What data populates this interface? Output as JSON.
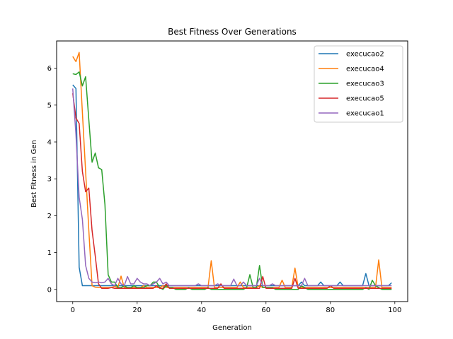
{
  "chart_data": {
    "type": "line",
    "title": "Best Fitness Over Generations",
    "xlabel": "Generation",
    "ylabel": "Best Fitness in Gen",
    "xlim": [
      -5,
      104
    ],
    "ylim": [
      -0.33,
      6.74
    ],
    "xticks": [
      0,
      20,
      40,
      60,
      80,
      100
    ],
    "yticks": [
      0,
      1,
      2,
      3,
      4,
      5,
      6
    ],
    "grid": false,
    "legend_position": "top-right",
    "series": [
      {
        "name": "execucao2",
        "color": "#1f77b4",
        "y": [
          5.55,
          5.45,
          0.6,
          0.1,
          0.1,
          0.1,
          0.1,
          0.1,
          0.1,
          0.1,
          0.1,
          0.1,
          0.1,
          0.1,
          0.1,
          0.1,
          0.1,
          0.1,
          0.1,
          0.1,
          0.1,
          0.1,
          0.1,
          0.1,
          0.1,
          0.1,
          0.1,
          0.1,
          0.1,
          0.1,
          0.1,
          0.1,
          0.1,
          0.1,
          0.1,
          0.1,
          0.1,
          0.1,
          0.1,
          0.1,
          0.1,
          0.1,
          0.1,
          0.1,
          0.1,
          0.1,
          0.1,
          0.1,
          0.1,
          0.1,
          0.1,
          0.1,
          0.1,
          0.1,
          0.1,
          0.1,
          0.1,
          0.1,
          0.1,
          0.1,
          0.1,
          0.1,
          0.1,
          0.1,
          0.1,
          0.1,
          0.1,
          0.1,
          0.1,
          0.1,
          0.1,
          0.2,
          0.1,
          0.1,
          0.1,
          0.1,
          0.1,
          0.2,
          0.1,
          0.1,
          0.1,
          0.1,
          0.1,
          0.2,
          0.1,
          0.1,
          0.1,
          0.1,
          0.1,
          0.1,
          0.1,
          0.43,
          0.1,
          0.1,
          0.1,
          0.1,
          0.1,
          0.1,
          0.1,
          0.18
        ]
      },
      {
        "name": "execucao4",
        "color": "#ff7f0e",
        "y": [
          6.32,
          6.18,
          6.43,
          4.8,
          3.2,
          1.6,
          0.1,
          0.06,
          0.05,
          0.05,
          0.05,
          0.05,
          0.05,
          0.08,
          0.05,
          0.36,
          0.05,
          0.05,
          0.05,
          0.05,
          0.05,
          0.05,
          0.1,
          0.05,
          0.05,
          0.05,
          0.05,
          0.05,
          0.1,
          0.05,
          0.05,
          0.05,
          0.05,
          0.05,
          0.05,
          0.05,
          0.05,
          0.05,
          0.05,
          0.05,
          0.05,
          0.05,
          0.05,
          0.78,
          0.05,
          0.05,
          0.05,
          0.05,
          0.05,
          0.05,
          0.05,
          0.05,
          0.2,
          0.05,
          0.05,
          0.05,
          0.05,
          0.05,
          0.1,
          0.05,
          0.05,
          0.05,
          0.05,
          0.05,
          0.05,
          0.25,
          0.05,
          0.05,
          0.05,
          0.58,
          0.05,
          0.05,
          0.05,
          0.05,
          0.05,
          0.05,
          0.05,
          0.05,
          0.05,
          0.05,
          0.05,
          0.05,
          0.05,
          0.05,
          0.05,
          0.05,
          0.05,
          0.05,
          0.05,
          0.05,
          0.05,
          0.05,
          0.05,
          0.05,
          0.05,
          0.8,
          0.05,
          0.05,
          0.05,
          0.05
        ]
      },
      {
        "name": "execucao3",
        "color": "#2ca02c",
        "y": [
          5.85,
          5.83,
          5.9,
          5.52,
          5.77,
          4.6,
          3.45,
          3.7,
          3.3,
          3.25,
          2.3,
          0.4,
          0.2,
          0.2,
          0.05,
          0.05,
          0.1,
          0.05,
          0.05,
          0.1,
          0.05,
          0.05,
          0.05,
          0.1,
          0.1,
          0.2,
          0.2,
          0.05,
          0.0,
          0.1,
          0.05,
          0.05,
          0.0,
          0.0,
          0.0,
          0.0,
          0.05,
          0.0,
          0.0,
          0.0,
          0.0,
          0.0,
          0.05,
          0.0,
          0.0,
          0.0,
          0.0,
          0.0,
          0.0,
          0.0,
          0.0,
          0.0,
          0.0,
          0.0,
          0.05,
          0.4,
          0.05,
          0.05,
          0.65,
          0.05,
          0.05,
          0.05,
          0.05,
          0.0,
          0.0,
          0.0,
          0.0,
          0.0,
          0.0,
          0.0,
          0.0,
          0.1,
          0.05,
          0.0,
          0.0,
          0.0,
          0.0,
          0.0,
          0.0,
          0.0,
          0.0,
          0.0,
          0.0,
          0.0,
          0.0,
          0.0,
          0.0,
          0.0,
          0.0,
          0.0,
          0.0,
          0.05,
          0.0,
          0.25,
          0.1,
          0.05,
          0.0,
          0.0,
          0.0,
          0.0
        ]
      },
      {
        "name": "execucao5",
        "color": "#d62728",
        "y": [
          5.32,
          4.65,
          4.5,
          3.2,
          2.65,
          2.75,
          1.6,
          0.9,
          0.15,
          0.03,
          0.03,
          0.03,
          0.05,
          0.03,
          0.03,
          0.03,
          0.03,
          0.03,
          0.03,
          0.03,
          0.03,
          0.03,
          0.03,
          0.03,
          0.03,
          0.03,
          0.1,
          0.03,
          0.03,
          0.15,
          0.03,
          0.03,
          0.03,
          0.03,
          0.03,
          0.03,
          0.03,
          0.03,
          0.03,
          0.03,
          0.03,
          0.03,
          0.03,
          0.03,
          0.03,
          0.03,
          0.15,
          0.03,
          0.03,
          0.03,
          0.03,
          0.03,
          0.03,
          0.03,
          0.03,
          0.03,
          0.03,
          0.03,
          0.03,
          0.35,
          0.03,
          0.03,
          0.03,
          0.03,
          0.03,
          0.03,
          0.03,
          0.03,
          0.03,
          0.3,
          0.03,
          0.03,
          0.03,
          0.03,
          0.03,
          0.03,
          0.03,
          0.03,
          0.03,
          0.03,
          0.1,
          0.03,
          0.03,
          0.03,
          0.03,
          0.03,
          0.03,
          0.03,
          0.03,
          0.03,
          0.03,
          0.03,
          0.03,
          0.03,
          0.03,
          0.03,
          0.03,
          0.03,
          0.03,
          0.03
        ]
      },
      {
        "name": "execucao1",
        "color": "#9467bd",
        "y": [
          5.45,
          4.2,
          2.5,
          1.9,
          0.65,
          0.3,
          0.2,
          0.18,
          0.2,
          0.18,
          0.2,
          0.3,
          0.15,
          0.1,
          0.3,
          0.15,
          0.1,
          0.35,
          0.15,
          0.15,
          0.3,
          0.2,
          0.15,
          0.15,
          0.1,
          0.15,
          0.2,
          0.3,
          0.15,
          0.2,
          0.1,
          0.1,
          0.1,
          0.1,
          0.1,
          0.1,
          0.1,
          0.1,
          0.1,
          0.15,
          0.1,
          0.1,
          0.1,
          0.1,
          0.1,
          0.15,
          0.1,
          0.1,
          0.1,
          0.1,
          0.28,
          0.1,
          0.1,
          0.2,
          0.1,
          0.1,
          0.1,
          0.1,
          0.3,
          0.1,
          0.1,
          0.1,
          0.15,
          0.1,
          0.1,
          0.1,
          0.1,
          0.1,
          0.1,
          0.1,
          0.1,
          0.1,
          0.3,
          0.1,
          0.1,
          0.1,
          0.1,
          0.1,
          0.1,
          0.1,
          0.1,
          0.1,
          0.1,
          0.1,
          0.1,
          0.1,
          0.1,
          0.1,
          0.1,
          0.1,
          0.1,
          0.1,
          0.1,
          0.1,
          0.1,
          0.1,
          0.1,
          0.1,
          0.1,
          0.1
        ]
      }
    ]
  }
}
